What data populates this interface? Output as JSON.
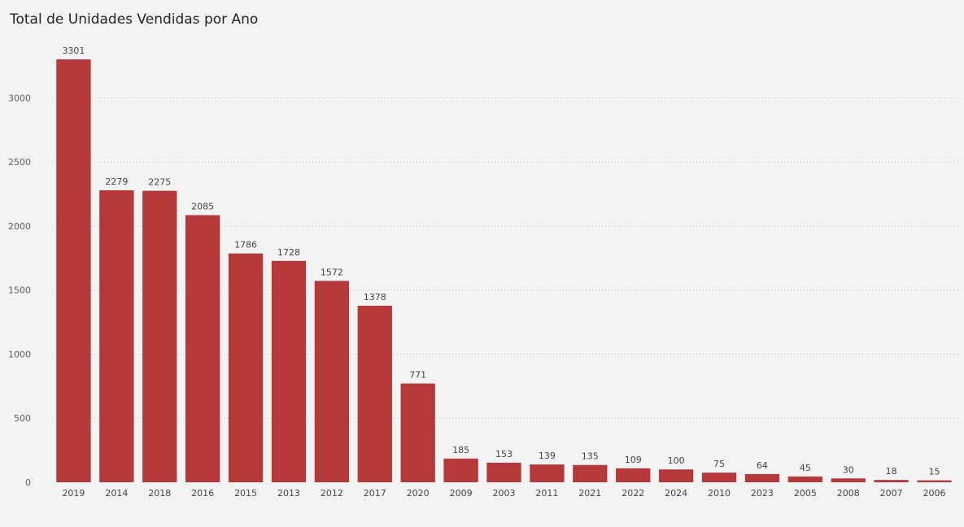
{
  "chart_data": {
    "type": "bar",
    "title": "Total de Unidades Vendidas por Ano",
    "xlabel": "",
    "ylabel": "",
    "categories": [
      "2019",
      "2014",
      "2018",
      "2016",
      "2015",
      "2013",
      "2012",
      "2017",
      "2020",
      "2009",
      "2003",
      "2011",
      "2021",
      "2022",
      "2024",
      "2010",
      "2023",
      "2005",
      "2008",
      "2007",
      "2006"
    ],
    "values": [
      3301,
      2279,
      2275,
      2085,
      1786,
      1728,
      1572,
      1378,
      771,
      185,
      153,
      139,
      135,
      109,
      100,
      75,
      64,
      45,
      30,
      18,
      15
    ],
    "ylim": [
      0,
      3301
    ],
    "yticks": [
      0,
      500,
      1000,
      1500,
      2000,
      2500,
      3000
    ],
    "grid": true,
    "bar_color": "#b5393b",
    "data_labels": true
  }
}
